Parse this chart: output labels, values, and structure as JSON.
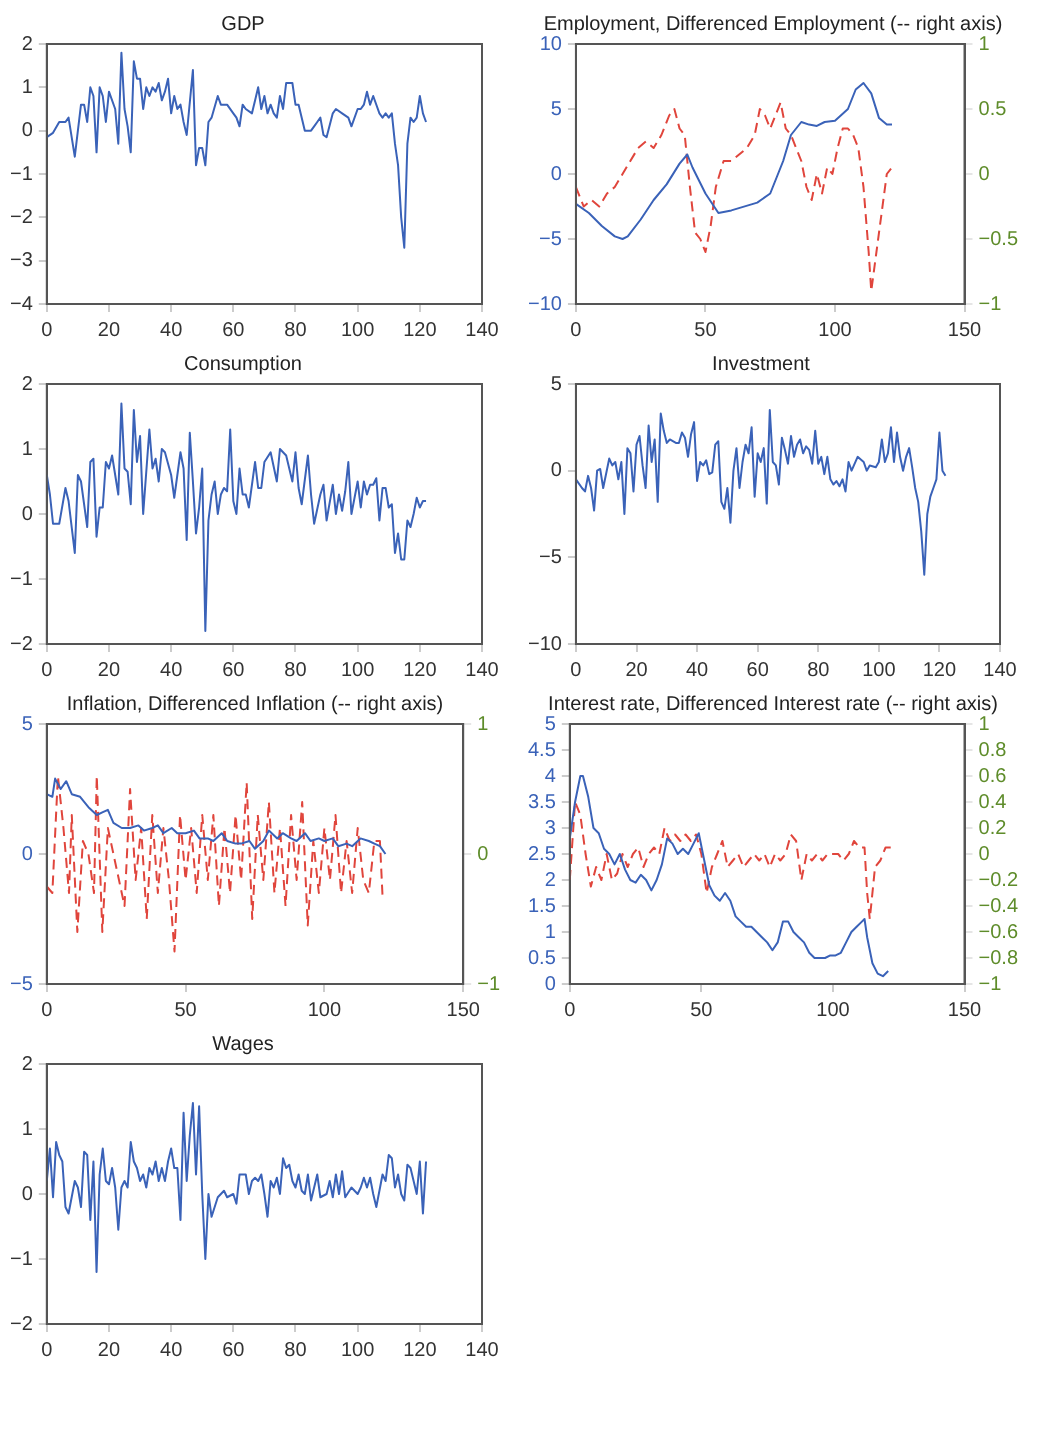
{
  "chart_data": [
    {
      "type": "line",
      "title": "GDP",
      "xlim": [
        0,
        140
      ],
      "xticks": [
        0,
        20,
        40,
        60,
        80,
        100,
        120,
        140
      ],
      "ylim": [
        -4,
        2
      ],
      "yticks": [
        -4,
        -3,
        -2,
        -1,
        0,
        1,
        2
      ],
      "series": [
        {
          "color": "#3a62b8",
          "x": [
            0,
            2,
            4,
            6,
            7,
            9,
            11,
            12,
            13,
            14,
            15,
            16,
            17,
            18,
            19,
            20,
            22,
            23,
            24,
            25,
            26,
            27,
            28,
            29,
            30,
            31,
            32,
            33,
            34,
            35,
            36,
            37,
            38,
            39,
            40,
            41,
            42,
            43,
            44,
            45,
            47,
            48,
            49,
            50,
            51,
            52,
            53,
            55,
            56,
            58,
            60,
            61,
            62,
            63,
            64,
            66,
            68,
            69,
            70,
            71,
            72,
            73,
            74,
            75,
            76,
            77,
            79,
            80,
            81,
            83,
            85,
            86,
            87,
            88,
            89,
            90,
            92,
            93,
            95,
            97,
            98,
            100,
            101,
            102,
            103,
            104,
            105,
            107,
            108,
            109,
            110,
            111,
            112,
            113,
            114,
            115,
            116,
            117,
            118,
            119,
            120,
            121,
            122
          ],
          "values": [
            -0.15,
            -0.05,
            0.2,
            0.2,
            0.3,
            -0.6,
            0.6,
            0.6,
            0.2,
            1.0,
            0.8,
            -0.5,
            1.0,
            0.8,
            0.2,
            0.9,
            0.5,
            -0.3,
            1.8,
            0.5,
            0.1,
            -0.5,
            1.6,
            1.2,
            1.2,
            0.5,
            1.0,
            0.8,
            1.0,
            0.9,
            1.1,
            0.7,
            0.9,
            1.2,
            0.4,
            0.8,
            0.5,
            0.6,
            0.2,
            -0.1,
            1.4,
            -0.8,
            -0.4,
            -0.4,
            -0.8,
            0.2,
            0.3,
            0.8,
            0.6,
            0.6,
            0.4,
            0.3,
            0.1,
            0.6,
            0.5,
            0.4,
            1.0,
            0.5,
            0.8,
            0.4,
            0.6,
            0.4,
            0.3,
            0.8,
            0.5,
            1.1,
            1.1,
            0.6,
            0.6,
            0.0,
            0.0,
            0.1,
            0.2,
            0.3,
            -0.1,
            -0.15,
            0.4,
            0.5,
            0.4,
            0.3,
            0.1,
            0.5,
            0.5,
            0.6,
            0.9,
            0.6,
            0.8,
            0.4,
            0.3,
            0.4,
            0.3,
            0.4,
            -0.3,
            -0.8,
            -2.0,
            -2.7,
            -0.3,
            0.3,
            0.2,
            0.3,
            0.8,
            0.4,
            0.2
          ]
        }
      ]
    },
    {
      "type": "line",
      "title": "Employment, Differenced Employment (-- right axis)",
      "xlim": [
        0,
        150
      ],
      "xticks": [
        0,
        50,
        100,
        150
      ],
      "ylim": [
        -10,
        10
      ],
      "yticks": [
        -10,
        -5,
        0,
        5,
        10
      ],
      "y2lim": [
        -1,
        1
      ],
      "y2ticks": [
        -1,
        -0.5,
        0,
        0.5,
        1
      ],
      "series": [
        {
          "color": "#3a62b8",
          "x": [
            0,
            5,
            10,
            15,
            18,
            20,
            25,
            30,
            35,
            40,
            43,
            45,
            50,
            55,
            60,
            70,
            75,
            80,
            83,
            87,
            90,
            93,
            96,
            100,
            105,
            108,
            111,
            114,
            117,
            120,
            122
          ],
          "values": [
            -2.3,
            -3,
            -4,
            -4.8,
            -5,
            -4.8,
            -3.5,
            -2,
            -0.8,
            0.8,
            1.5,
            0.5,
            -1.5,
            -3,
            -2.8,
            -2.2,
            -1.5,
            1,
            3,
            4,
            3.8,
            3.7,
            4,
            4.1,
            5,
            6.5,
            7,
            6.2,
            4.3,
            3.8,
            3.8
          ]
        },
        {
          "color": "#e0453c",
          "axis": "y2",
          "line_style": "dashed",
          "x": [
            0,
            3,
            6,
            9,
            12,
            15,
            18,
            21,
            24,
            27,
            30,
            33,
            36,
            38,
            40,
            42,
            44,
            46,
            48,
            50,
            52,
            54,
            57,
            60,
            63,
            66,
            69,
            71,
            73,
            75,
            77,
            79,
            81,
            83,
            85,
            87,
            89,
            91,
            93,
            95,
            97,
            99,
            101,
            103,
            105,
            107,
            109,
            111,
            113,
            114,
            116,
            118,
            120,
            122
          ],
          "values": [
            -0.1,
            -0.25,
            -0.2,
            -0.25,
            -0.15,
            -0.1,
            0,
            0.1,
            0.2,
            0.25,
            0.2,
            0.3,
            0.45,
            0.5,
            0.35,
            0.3,
            -0.1,
            -0.45,
            -0.5,
            -0.6,
            -0.4,
            -0.1,
            0.1,
            0.1,
            0.15,
            0.2,
            0.3,
            0.5,
            0.45,
            0.35,
            0.45,
            0.55,
            0.35,
            0.3,
            0.2,
            0.1,
            -0.1,
            -0.2,
            0.0,
            -0.15,
            0.05,
            0.0,
            0.2,
            0.35,
            0.35,
            0.3,
            0.2,
            -0.1,
            -0.6,
            -0.9,
            -0.6,
            -0.3,
            0.0,
            0.05
          ]
        }
      ]
    },
    {
      "type": "line",
      "title": "Consumption",
      "xlim": [
        0,
        140
      ],
      "xticks": [
        0,
        20,
        40,
        60,
        80,
        100,
        120,
        140
      ],
      "ylim": [
        -2,
        2
      ],
      "yticks": [
        -2,
        -1,
        0,
        1,
        2
      ],
      "series": [
        {
          "color": "#3a62b8",
          "x": [
            0,
            1,
            2,
            4,
            6,
            7,
            9,
            10,
            11,
            13,
            14,
            15,
            16,
            17,
            18,
            19,
            20,
            21,
            23,
            24,
            25,
            26,
            27,
            28,
            29,
            30,
            31,
            33,
            34,
            35,
            36,
            37,
            38,
            40,
            41,
            43,
            44,
            45,
            46,
            47,
            48,
            49,
            50,
            51,
            52,
            53,
            54,
            55,
            56,
            57,
            58,
            59,
            60,
            61,
            62,
            63,
            64,
            65,
            67,
            68,
            69,
            70,
            72,
            74,
            75,
            77,
            79,
            80,
            81,
            82,
            84,
            85,
            86,
            88,
            89,
            90,
            92,
            93,
            94,
            95,
            96,
            97,
            98,
            99,
            100,
            101,
            102,
            103,
            104,
            105,
            106,
            107,
            108,
            109,
            110,
            111,
            112,
            113,
            114,
            115,
            116,
            117,
            118,
            119,
            120,
            121,
            122
          ],
          "values": [
            0.6,
            0.3,
            -0.15,
            -0.15,
            0.4,
            0.2,
            -0.6,
            0.6,
            0.5,
            -0.2,
            0.8,
            0.85,
            -0.35,
            0.1,
            0.1,
            0.8,
            0.7,
            0.9,
            0.3,
            1.7,
            0.7,
            0.65,
            0.15,
            1.6,
            0.8,
            1.2,
            0.0,
            1.3,
            0.7,
            0.85,
            0.5,
            1.0,
            0.95,
            0.6,
            0.25,
            0.95,
            0.7,
            -0.4,
            1.25,
            0.5,
            -0.3,
            0.1,
            0.7,
            -1.8,
            -0.1,
            0.3,
            0.5,
            0.0,
            0.3,
            0.4,
            0.35,
            1.3,
            0.2,
            0.0,
            0.7,
            0.3,
            0.3,
            0.1,
            0.8,
            0.4,
            0.4,
            0.8,
            0.95,
            0.5,
            1.0,
            0.9,
            0.5,
            0.95,
            0.4,
            0.15,
            0.9,
            0.3,
            -0.15,
            0.3,
            0.45,
            -0.1,
            0.45,
            0.0,
            0.3,
            0.05,
            0.35,
            0.8,
            0.0,
            0.25,
            0.5,
            0.1,
            0.5,
            0.3,
            0.45,
            0.45,
            0.55,
            -0.1,
            0.4,
            0.4,
            0.1,
            0.15,
            -0.6,
            -0.3,
            -0.7,
            -0.7,
            -0.1,
            -0.2,
            0.0,
            0.25,
            0.1,
            0.2,
            0.2
          ]
        }
      ]
    },
    {
      "type": "line",
      "title": "Investment",
      "xlim": [
        0,
        140
      ],
      "xticks": [
        0,
        20,
        40,
        60,
        80,
        100,
        120,
        140
      ],
      "ylim": [
        -10,
        5
      ],
      "yticks": [
        -10,
        -5,
        0,
        5
      ],
      "series": [
        {
          "color": "#3a62b8",
          "x": [
            0,
            2,
            3,
            4,
            5,
            6,
            7,
            8,
            9,
            11,
            12,
            13,
            14,
            15,
            16,
            17,
            18,
            19,
            20,
            21,
            22,
            23,
            24,
            25,
            26,
            27,
            28,
            29,
            30,
            31,
            33,
            34,
            35,
            36,
            37,
            38,
            39,
            40,
            41,
            42,
            43,
            44,
            45,
            46,
            47,
            48,
            49,
            50,
            51,
            52,
            53,
            54,
            55,
            56,
            57,
            58,
            59,
            60,
            61,
            62,
            63,
            64,
            65,
            66,
            67,
            68,
            69,
            70,
            71,
            72,
            73,
            74,
            75,
            76,
            77,
            78,
            79,
            80,
            81,
            82,
            83,
            84,
            85,
            86,
            87,
            88,
            89,
            90,
            91,
            93,
            95,
            96,
            97,
            99,
            100,
            101,
            102,
            103,
            104,
            105,
            106,
            107,
            108,
            109,
            110,
            111,
            112,
            113,
            114,
            115,
            116,
            117,
            118,
            119,
            120,
            121,
            122
          ],
          "values": [
            -0.5,
            -1,
            -1.2,
            -0.3,
            -1,
            -2.3,
            0,
            0.1,
            -1,
            0.7,
            0.3,
            0.5,
            -0.5,
            0.5,
            -2.5,
            1.3,
            1.0,
            -1.2,
            1.5,
            2.0,
            0.3,
            -1,
            2.6,
            0.5,
            1.8,
            -1.8,
            3.3,
            2.3,
            1.6,
            1.8,
            1.6,
            1.6,
            2.2,
            1.9,
            0.8,
            2.1,
            2.8,
            -0.6,
            0.5,
            0.3,
            0.6,
            -0.2,
            -0.1,
            1.5,
            1.7,
            -1.8,
            -2.2,
            -1,
            -3.0,
            0,
            1.3,
            -1,
            0.5,
            1.5,
            1,
            2.5,
            -1.5,
            1.0,
            0.5,
            1.3,
            -1.9,
            3.5,
            0.5,
            0.3,
            -0.8,
            1.9,
            1.2,
            0.4,
            2.0,
            0.8,
            1.5,
            1.8,
            1.0,
            1.4,
            1.2,
            0.4,
            2.3,
            0.4,
            0.8,
            -0.2,
            0.8,
            -0.5,
            -0.8,
            -0.6,
            -0.9,
            -0.5,
            -1.2,
            0.5,
            0.0,
            0.8,
            0.5,
            0.0,
            0.3,
            0.2,
            0.5,
            1.8,
            0.5,
            1.0,
            2.5,
            0.5,
            2.2,
            0.8,
            0.0,
            0.8,
            1.3,
            0.2,
            -1.0,
            -1.8,
            -3.5,
            -6.0,
            -2.5,
            -1.5,
            -1.0,
            -0.5,
            2.2,
            0.0,
            -0.3
          ]
        }
      ]
    },
    {
      "type": "line",
      "title": "Inflation, Differenced Inflation (-- right axis)",
      "xlim": [
        0,
        150
      ],
      "xticks": [
        0,
        50,
        100,
        150
      ],
      "ylim": [
        -5,
        5
      ],
      "yticks": [
        -5,
        0,
        5
      ],
      "y2lim": [
        -1,
        1
      ],
      "y2ticks": [
        -1,
        0,
        1
      ],
      "series": [
        {
          "color": "#3a62b8",
          "x": [
            0,
            2,
            3,
            5,
            7,
            9,
            12,
            15,
            18,
            20,
            22,
            24,
            27,
            30,
            33,
            35,
            38,
            40,
            42,
            45,
            47,
            50,
            53,
            55,
            58,
            60,
            63,
            65,
            68,
            70,
            73,
            75,
            78,
            80,
            83,
            85,
            88,
            90,
            93,
            95,
            98,
            100,
            103,
            105,
            108,
            110,
            113,
            116,
            118,
            120,
            122
          ],
          "values": [
            2.3,
            2.2,
            2.9,
            2.5,
            2.8,
            2.3,
            2.2,
            1.8,
            1.5,
            1.6,
            1.7,
            1.2,
            1.0,
            1.0,
            1.1,
            0.9,
            1.0,
            1.1,
            0.8,
            1.0,
            0.8,
            0.8,
            0.9,
            0.6,
            0.6,
            0.5,
            0.8,
            0.5,
            0.4,
            0.4,
            0.5,
            0.2,
            0.5,
            0.9,
            0.6,
            0.8,
            0.6,
            0.5,
            0.8,
            0.5,
            0.6,
            0.5,
            0.6,
            0.3,
            0.4,
            0.3,
            0.6,
            0.5,
            0.4,
            0.3,
            0.0
          ]
        },
        {
          "color": "#e0453c",
          "axis": "y2",
          "line_style": "dashed",
          "x": [
            0,
            2,
            4,
            6,
            8,
            9,
            11,
            13,
            15,
            17,
            18,
            20,
            22,
            24,
            26,
            28,
            30,
            32,
            34,
            36,
            38,
            40,
            42,
            44,
            46,
            48,
            50,
            52,
            54,
            56,
            58,
            60,
            62,
            64,
            66,
            68,
            70,
            72,
            74,
            76,
            78,
            80,
            82,
            84,
            86,
            88,
            90,
            92,
            94,
            96,
            98,
            100,
            102,
            104,
            106,
            108,
            110,
            112,
            114,
            116,
            118,
            120,
            121
          ],
          "values": [
            -0.25,
            -0.3,
            0.6,
            0.2,
            -0.3,
            0.3,
            -0.6,
            0.1,
            0.0,
            -0.3,
            0.6,
            -0.6,
            0.2,
            0.0,
            -0.2,
            -0.4,
            0.5,
            -0.2,
            0.2,
            -0.5,
            0.3,
            -0.3,
            0.2,
            -0.2,
            -0.75,
            0.3,
            -0.2,
            0.2,
            -0.3,
            0.3,
            -0.2,
            0.3,
            -0.4,
            0.2,
            -0.3,
            0.3,
            -0.2,
            0.55,
            -0.5,
            0.3,
            -0.2,
            0.4,
            -0.3,
            0.2,
            -0.4,
            0.3,
            -0.2,
            0.4,
            -0.55,
            0.1,
            -0.3,
            0.2,
            -0.2,
            0.3,
            -0.3,
            0.1,
            -0.3,
            0.2,
            -0.2,
            -0.3,
            0.1,
            0.1,
            -0.35
          ]
        }
      ]
    },
    {
      "type": "line",
      "title": "Interest rate, Differenced Interest rate (-- right axis)",
      "xlim": [
        0,
        150
      ],
      "xticks": [
        0,
        50,
        100,
        150
      ],
      "ylim": [
        0,
        5
      ],
      "yticks": [
        0,
        0.5,
        1,
        1.5,
        2,
        2.5,
        3,
        3.5,
        4,
        4.5,
        5
      ],
      "y2lim": [
        -1,
        1
      ],
      "y2ticks": [
        -1,
        -0.8,
        -0.6,
        -0.4,
        -0.2,
        0,
        0.2,
        0.4,
        0.6,
        0.8,
        1
      ],
      "series": [
        {
          "color": "#3a62b8",
          "x": [
            0,
            2,
            4,
            5,
            7,
            9,
            11,
            13,
            15,
            17,
            19,
            21,
            23,
            25,
            27,
            29,
            31,
            33,
            35,
            37,
            39,
            41,
            43,
            45,
            47,
            49,
            51,
            53,
            55,
            57,
            59,
            61,
            63,
            65,
            67,
            69,
            71,
            73,
            75,
            77,
            79,
            81,
            83,
            85,
            87,
            89,
            91,
            93,
            95,
            97,
            99,
            101,
            103,
            105,
            107,
            109,
            111,
            112,
            113,
            115,
            117,
            119,
            121
          ],
          "values": [
            2.8,
            3.5,
            4.0,
            4.0,
            3.6,
            3.0,
            2.9,
            2.6,
            2.5,
            2.3,
            2.5,
            2.2,
            2.0,
            1.95,
            2.1,
            2.0,
            1.8,
            2.0,
            2.3,
            2.8,
            2.7,
            2.5,
            2.6,
            2.5,
            2.7,
            2.9,
            2.4,
            1.9,
            1.7,
            1.6,
            1.75,
            1.6,
            1.3,
            1.2,
            1.1,
            1.1,
            1.0,
            0.9,
            0.8,
            0.65,
            0.8,
            1.2,
            1.2,
            1.0,
            0.9,
            0.8,
            0.6,
            0.5,
            0.5,
            0.5,
            0.55,
            0.55,
            0.6,
            0.8,
            1.0,
            1.1,
            1.2,
            1.25,
            0.9,
            0.4,
            0.2,
            0.15,
            0.25
          ]
        },
        {
          "color": "#e0453c",
          "axis": "y2",
          "line_style": "dashed",
          "x": [
            0,
            2,
            4,
            6,
            8,
            10,
            12,
            14,
            16,
            18,
            20,
            22,
            24,
            26,
            28,
            30,
            32,
            34,
            36,
            38,
            40,
            42,
            44,
            46,
            48,
            50,
            52,
            54,
            56,
            58,
            60,
            62,
            64,
            66,
            68,
            70,
            72,
            74,
            76,
            78,
            80,
            82,
            84,
            86,
            88,
            90,
            92,
            94,
            96,
            98,
            100,
            102,
            104,
            106,
            108,
            110,
            112,
            113,
            114,
            116,
            118,
            120,
            122
          ],
          "values": [
            -0.2,
            0.4,
            0.3,
            0.0,
            -0.25,
            -0.1,
            -0.2,
            0.0,
            -0.2,
            -0.15,
            0.0,
            -0.1,
            0.0,
            0.05,
            -0.1,
            0.0,
            0.05,
            0.0,
            0.2,
            0.1,
            0.15,
            0.1,
            0.15,
            0.1,
            0.15,
            0.0,
            -0.3,
            -0.1,
            0.0,
            0.1,
            -0.1,
            -0.05,
            0.0,
            -0.1,
            -0.05,
            0.0,
            -0.05,
            0.0,
            -0.1,
            0.0,
            -0.05,
            0.0,
            0.15,
            0.1,
            -0.2,
            0.0,
            -0.05,
            0.0,
            -0.05,
            0.0,
            0.0,
            0.0,
            -0.05,
            0.0,
            0.1,
            0.05,
            0.05,
            -0.3,
            -0.5,
            -0.1,
            -0.05,
            0.05,
            0.05
          ]
        }
      ]
    },
    {
      "type": "line",
      "title": "Wages",
      "xlim": [
        0,
        140
      ],
      "xticks": [
        0,
        20,
        40,
        60,
        80,
        100,
        120,
        140
      ],
      "ylim": [
        -2,
        2
      ],
      "yticks": [
        -2,
        -1,
        0,
        1,
        2
      ],
      "series": [
        {
          "color": "#3a62b8",
          "x": [
            0,
            1,
            2,
            3,
            4,
            5,
            6,
            7,
            9,
            10,
            11,
            12,
            13,
            14,
            15,
            16,
            17,
            18,
            19,
            20,
            21,
            22,
            23,
            24,
            25,
            26,
            27,
            28,
            29,
            30,
            31,
            32,
            33,
            34,
            35,
            36,
            37,
            38,
            39,
            40,
            41,
            42,
            43,
            44,
            45,
            46,
            47,
            48,
            49,
            50,
            51,
            52,
            53,
            54,
            55,
            57,
            58,
            60,
            61,
            62,
            64,
            65,
            66,
            67,
            68,
            69,
            70,
            71,
            72,
            73,
            74,
            75,
            76,
            77,
            78,
            79,
            80,
            81,
            82,
            83,
            84,
            85,
            87,
            88,
            90,
            91,
            92,
            93,
            94,
            95,
            96,
            98,
            100,
            101,
            102,
            103,
            104,
            105,
            106,
            107,
            108,
            109,
            110,
            111,
            112,
            113,
            114,
            115,
            116,
            117,
            118,
            119,
            120,
            121,
            122
          ],
          "values": [
            0.2,
            0.7,
            -0.05,
            0.8,
            0.6,
            0.5,
            -0.2,
            -0.3,
            0.2,
            0.1,
            -0.2,
            0.65,
            0.6,
            -0.4,
            0.5,
            -1.2,
            0.3,
            0.7,
            0.2,
            0.15,
            0.4,
            0.1,
            -0.55,
            0.1,
            0.2,
            0.1,
            0.8,
            0.5,
            0.4,
            0.2,
            0.3,
            0.1,
            0.4,
            0.3,
            0.5,
            0.2,
            0.4,
            0.2,
            0.5,
            0.7,
            0.4,
            0.4,
            -0.4,
            1.25,
            0.2,
            0.9,
            1.4,
            0.3,
            1.35,
            0.0,
            -1.0,
            0.0,
            -0.35,
            -0.2,
            -0.05,
            0.05,
            -0.05,
            0.0,
            -0.15,
            0.3,
            0.3,
            0.0,
            0.2,
            0.25,
            0.2,
            0.3,
            0.0,
            -0.35,
            0.2,
            0.1,
            0.25,
            0.0,
            0.55,
            0.4,
            0.45,
            0.2,
            0.1,
            0.3,
            0.05,
            0.0,
            0.3,
            -0.1,
            0.3,
            -0.05,
            0.0,
            0.2,
            -0.05,
            0.3,
            0.0,
            0.35,
            -0.05,
            0.1,
            0.0,
            0.1,
            0.25,
            0.1,
            0.25,
            0.0,
            -0.2,
            0.05,
            0.3,
            0.2,
            0.6,
            0.55,
            0.1,
            0.3,
            0.0,
            -0.1,
            0.45,
            0.4,
            0.2,
            0.0,
            0.5,
            -0.3,
            0.5
          ]
        }
      ]
    }
  ]
}
